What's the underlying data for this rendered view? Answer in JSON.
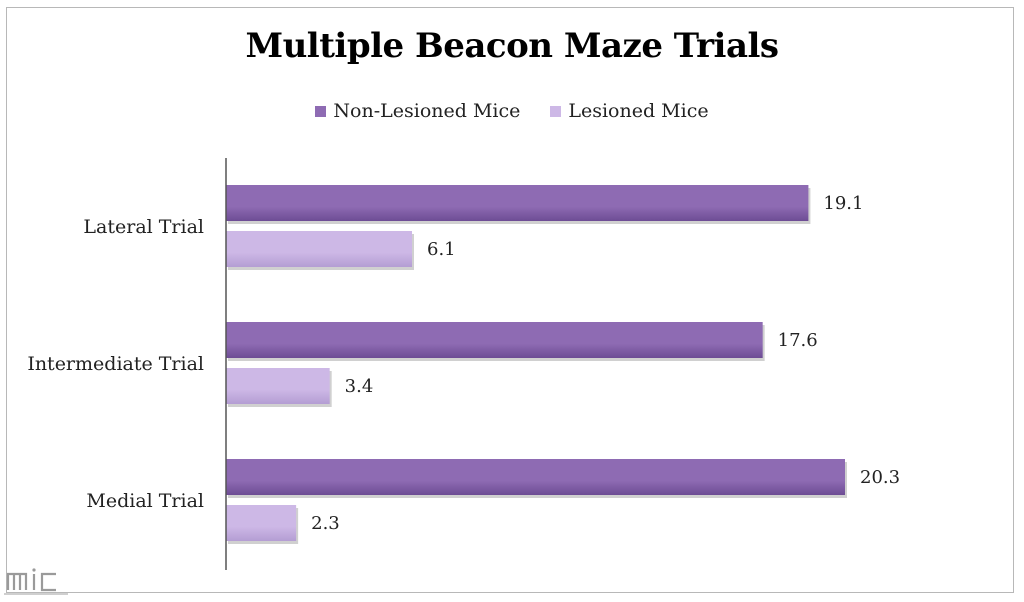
{
  "colors": {
    "non_lesioned": "#8e6bb3",
    "non_lesioned_dark": "#6d4c94",
    "lesioned": "#cdb8e6",
    "lesioned_dark": "#b49dd3",
    "axis": "#555555"
  },
  "logo_text": "mic",
  "chart_data": {
    "type": "bar",
    "orientation": "horizontal",
    "title": "Multiple Beacon Maze Trials",
    "categories": [
      "Lateral Trial",
      "Intermediate Trial",
      "Medial Trial"
    ],
    "series": [
      {
        "name": "Non-Lesioned Mice",
        "values": [
          19.1,
          17.6,
          20.3
        ],
        "labels": [
          "19.1",
          "17.6",
          "20.3"
        ]
      },
      {
        "name": "Lesioned Mice",
        "values": [
          6.1,
          3.4,
          2.3
        ],
        "labels": [
          "6.1",
          "3.4",
          "2.3"
        ]
      }
    ],
    "xlim": [
      0,
      24
    ],
    "grid": false,
    "legend_position": "top"
  }
}
